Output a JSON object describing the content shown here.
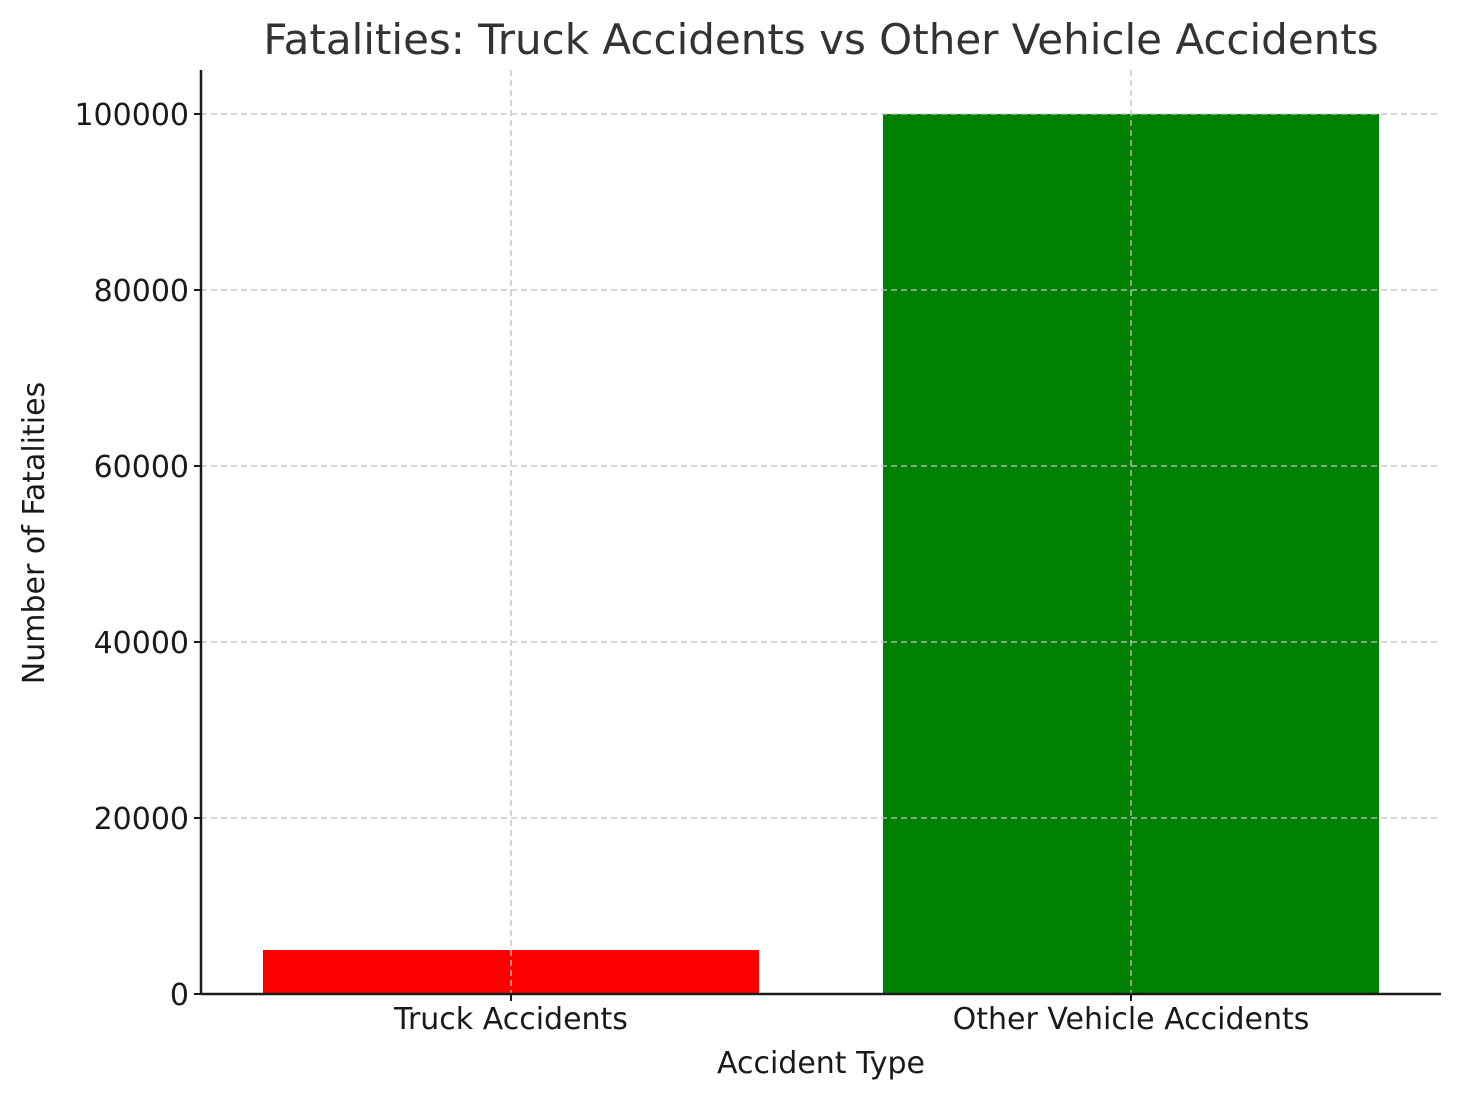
{
  "chart_data": {
    "type": "bar",
    "title": "Fatalities: Truck Accidents vs Other Vehicle Accidents",
    "xlabel": "Accident Type",
    "ylabel": "Number of Fatalities",
    "categories": [
      "Truck Accidents",
      "Other Vehicle Accidents"
    ],
    "values": [
      5000,
      100000
    ],
    "colors": [
      "#ff0000",
      "#008000"
    ],
    "ylim": [
      0,
      105000
    ],
    "yticks": [
      0,
      20000,
      40000,
      60000,
      80000,
      100000
    ],
    "grid": true
  }
}
